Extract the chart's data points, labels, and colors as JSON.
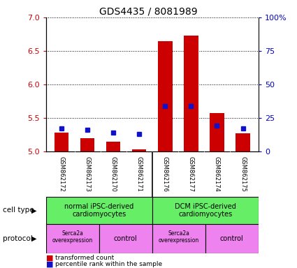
{
  "title": "GDS4435 / 8081989",
  "samples": [
    "GSM862172",
    "GSM862173",
    "GSM862170",
    "GSM862171",
    "GSM862176",
    "GSM862177",
    "GSM862174",
    "GSM862175"
  ],
  "red_values": [
    5.28,
    5.2,
    5.15,
    5.03,
    6.65,
    6.73,
    5.57,
    5.27
  ],
  "blue_values_pct": [
    17,
    16,
    14,
    13,
    34,
    34,
    19,
    17
  ],
  "ylim_left": [
    5.0,
    7.0
  ],
  "ylim_right": [
    0,
    100
  ],
  "yticks_left": [
    5.0,
    5.5,
    6.0,
    6.5,
    7.0
  ],
  "yticks_right": [
    0,
    25,
    50,
    75,
    100
  ],
  "cell_type_groups": [
    {
      "label": "normal iPSC-derived\ncardiomyocytes",
      "color": "#66ee66"
    },
    {
      "label": "DCM iPSC-derived\ncardiomyocytes",
      "color": "#66ee66"
    }
  ],
  "protocol_groups": [
    {
      "label": "Serca2a\noverexpression",
      "color": "#ee82ee"
    },
    {
      "label": "control",
      "color": "#ee82ee"
    },
    {
      "label": "Serca2a\noverexpression",
      "color": "#ee82ee"
    },
    {
      "label": "control",
      "color": "#ee82ee"
    }
  ],
  "bar_width": 0.55,
  "red_color": "#cc0000",
  "blue_color": "#1111cc",
  "bg_color": "#ffffff",
  "tick_color_left": "#cc0000",
  "tick_color_right": "#0000cc",
  "legend_red": "transformed count",
  "legend_blue": "percentile rank within the sample",
  "cell_type_label": "cell type",
  "protocol_label": "protocol",
  "sample_bg_color": "#d3d3d3",
  "divider_color": "#888888"
}
